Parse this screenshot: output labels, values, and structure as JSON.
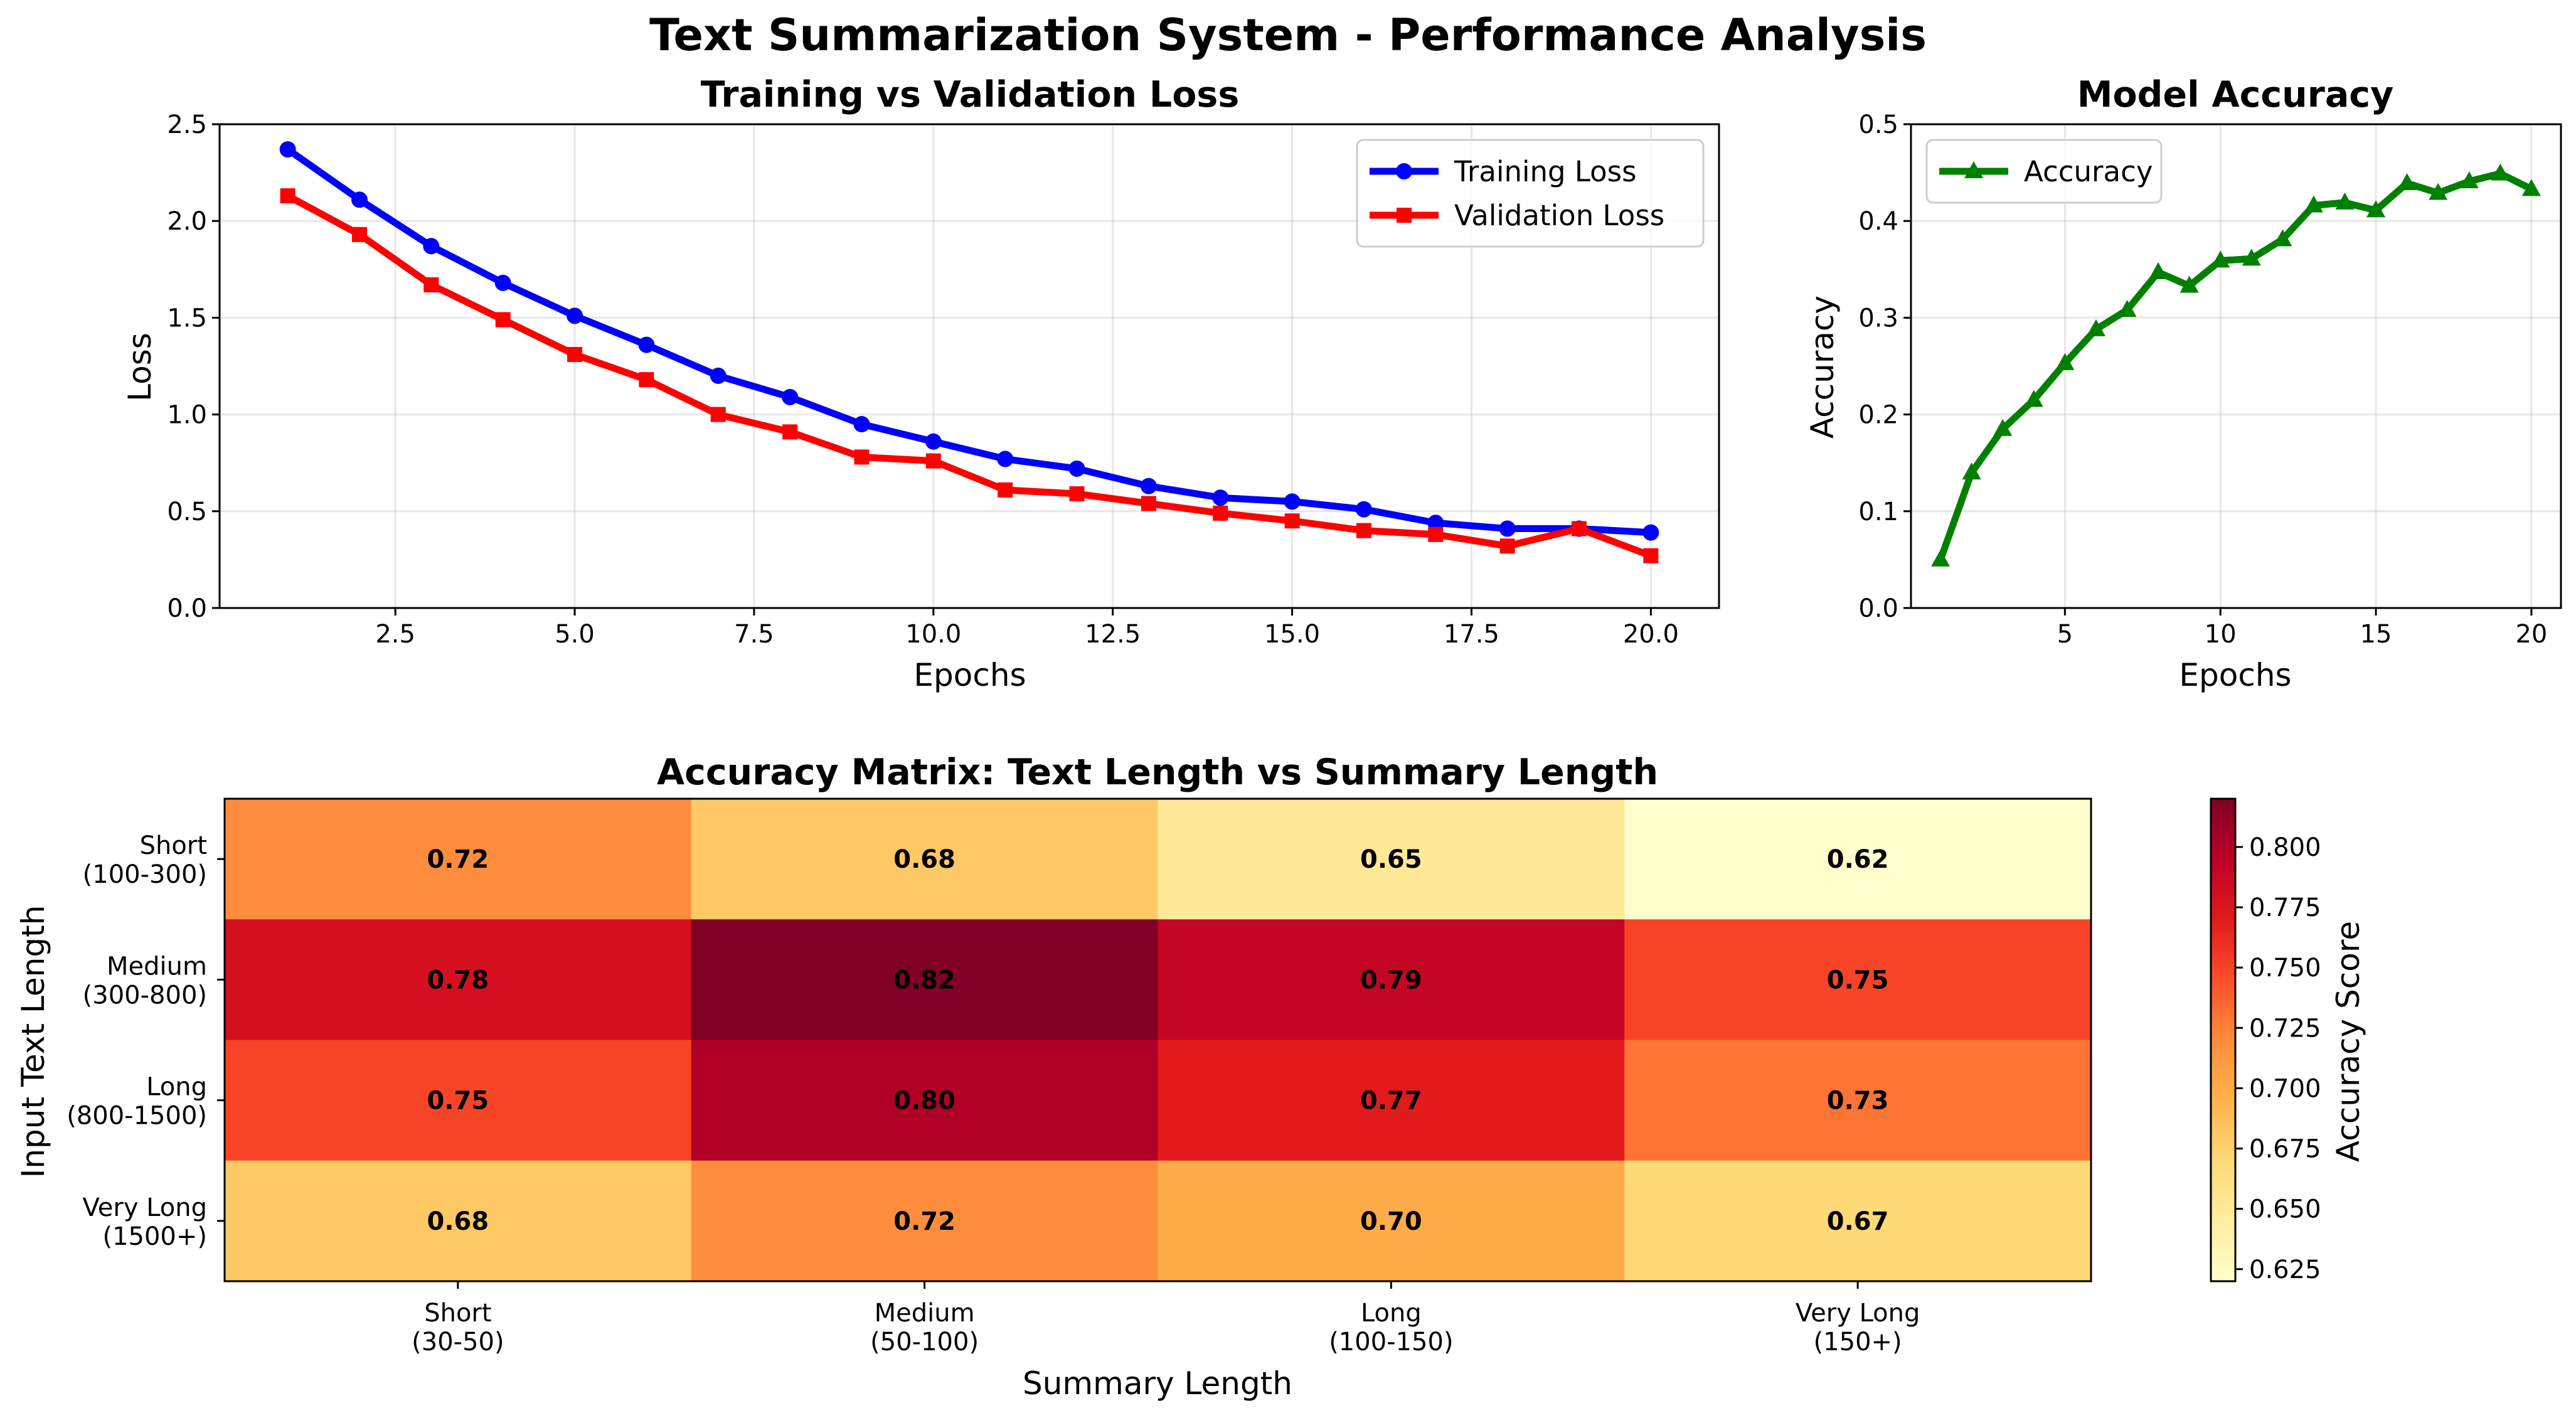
{
  "title": "Text Summarization System - Performance Analysis",
  "chart_data": [
    {
      "type": "line",
      "title": "Training vs Validation Loss",
      "xlabel": "Epochs",
      "ylabel": "Loss",
      "x": [
        1,
        2,
        3,
        4,
        5,
        6,
        7,
        8,
        9,
        10,
        11,
        12,
        13,
        14,
        15,
        16,
        17,
        18,
        19,
        20
      ],
      "xlim": [
        0.05,
        20.95
      ],
      "ylim": [
        0,
        2.5
      ],
      "xticks": [
        2.5,
        5.0,
        7.5,
        10.0,
        12.5,
        15.0,
        17.5,
        20.0
      ],
      "xtick_labels": [
        "2.5",
        "5.0",
        "7.5",
        "10.0",
        "12.5",
        "15.0",
        "17.5",
        "20.0"
      ],
      "yticks": [
        0,
        0.5,
        1.0,
        1.5,
        2.0,
        2.5
      ],
      "ytick_labels": [
        "0.0",
        "0.5",
        "1.0",
        "1.5",
        "2.0",
        "2.5"
      ],
      "grid": true,
      "legend": "upper right",
      "series": [
        {
          "name": "Training Loss",
          "color": "#0000ff",
          "marker": "circle",
          "values": [
            2.37,
            2.11,
            1.87,
            1.68,
            1.51,
            1.36,
            1.2,
            1.09,
            0.95,
            0.86,
            0.77,
            0.72,
            0.63,
            0.57,
            0.55,
            0.51,
            0.44,
            0.41,
            0.41,
            0.39
          ]
        },
        {
          "name": "Validation Loss",
          "color": "#ff0000",
          "marker": "square",
          "values": [
            2.13,
            1.93,
            1.67,
            1.49,
            1.31,
            1.18,
            1.0,
            0.91,
            0.78,
            0.76,
            0.61,
            0.59,
            0.54,
            0.49,
            0.45,
            0.4,
            0.38,
            0.32,
            0.41,
            0.27
          ]
        }
      ]
    },
    {
      "type": "line",
      "title": "Model Accuracy",
      "xlabel": "Epochs",
      "ylabel": "Accuracy",
      "x": [
        1,
        2,
        3,
        4,
        5,
        6,
        7,
        8,
        9,
        10,
        11,
        12,
        13,
        14,
        15,
        16,
        17,
        18,
        19,
        20
      ],
      "xlim": [
        0.05,
        20.95
      ],
      "ylim": [
        0,
        0.5
      ],
      "xticks": [
        5,
        10,
        15,
        20
      ],
      "xtick_labels": [
        "5",
        "10",
        "15",
        "20"
      ],
      "yticks": [
        0,
        0.1,
        0.2,
        0.3,
        0.4,
        0.5
      ],
      "ytick_labels": [
        "0.0",
        "0.1",
        "0.2",
        "0.3",
        "0.4",
        "0.5"
      ],
      "grid": true,
      "legend": "upper left",
      "series": [
        {
          "name": "Accuracy",
          "color": "#008000",
          "marker": "triangle",
          "values": [
            0.05,
            0.14,
            0.185,
            0.215,
            0.253,
            0.288,
            0.308,
            0.347,
            0.333,
            0.359,
            0.361,
            0.381,
            0.416,
            0.419,
            0.411,
            0.439,
            0.429,
            0.441,
            0.449,
            0.433
          ]
        }
      ]
    },
    {
      "type": "heatmap",
      "title": "Accuracy Matrix: Text Length vs Summary Length",
      "xlabel": "Summary Length",
      "ylabel": "Input Text Length",
      "x_categories": [
        [
          "Short",
          "(30-50)"
        ],
        [
          "Medium",
          "(50-100)"
        ],
        [
          "Long",
          "(100-150)"
        ],
        [
          "Very Long",
          "(150+)"
        ]
      ],
      "y_categories": [
        [
          "Short",
          "(100-300)"
        ],
        [
          "Medium",
          "(300-800)"
        ],
        [
          "Long",
          "(800-1500)"
        ],
        [
          "Very Long",
          "(1500+)"
        ]
      ],
      "values": [
        [
          0.72,
          0.68,
          0.65,
          0.62
        ],
        [
          0.78,
          0.82,
          0.79,
          0.75
        ],
        [
          0.75,
          0.8,
          0.77,
          0.73
        ],
        [
          0.68,
          0.72,
          0.7,
          0.67
        ]
      ],
      "value_labels": [
        [
          "0.72",
          "0.68",
          "0.65",
          "0.62"
        ],
        [
          "0.78",
          "0.82",
          "0.79",
          "0.75"
        ],
        [
          "0.75",
          "0.80",
          "0.77",
          "0.73"
        ],
        [
          "0.68",
          "0.72",
          "0.70",
          "0.67"
        ]
      ],
      "colormap": "YlOrRd",
      "vmin": 0.62,
      "vmax": 0.82,
      "colorbar": {
        "label": "Accuracy Score",
        "ticks": [
          0.625,
          0.65,
          0.675,
          0.7,
          0.725,
          0.75,
          0.775,
          0.8
        ],
        "tick_labels": [
          "0.625",
          "0.650",
          "0.675",
          "0.700",
          "0.725",
          "0.750",
          "0.775",
          "0.800"
        ]
      }
    }
  ]
}
